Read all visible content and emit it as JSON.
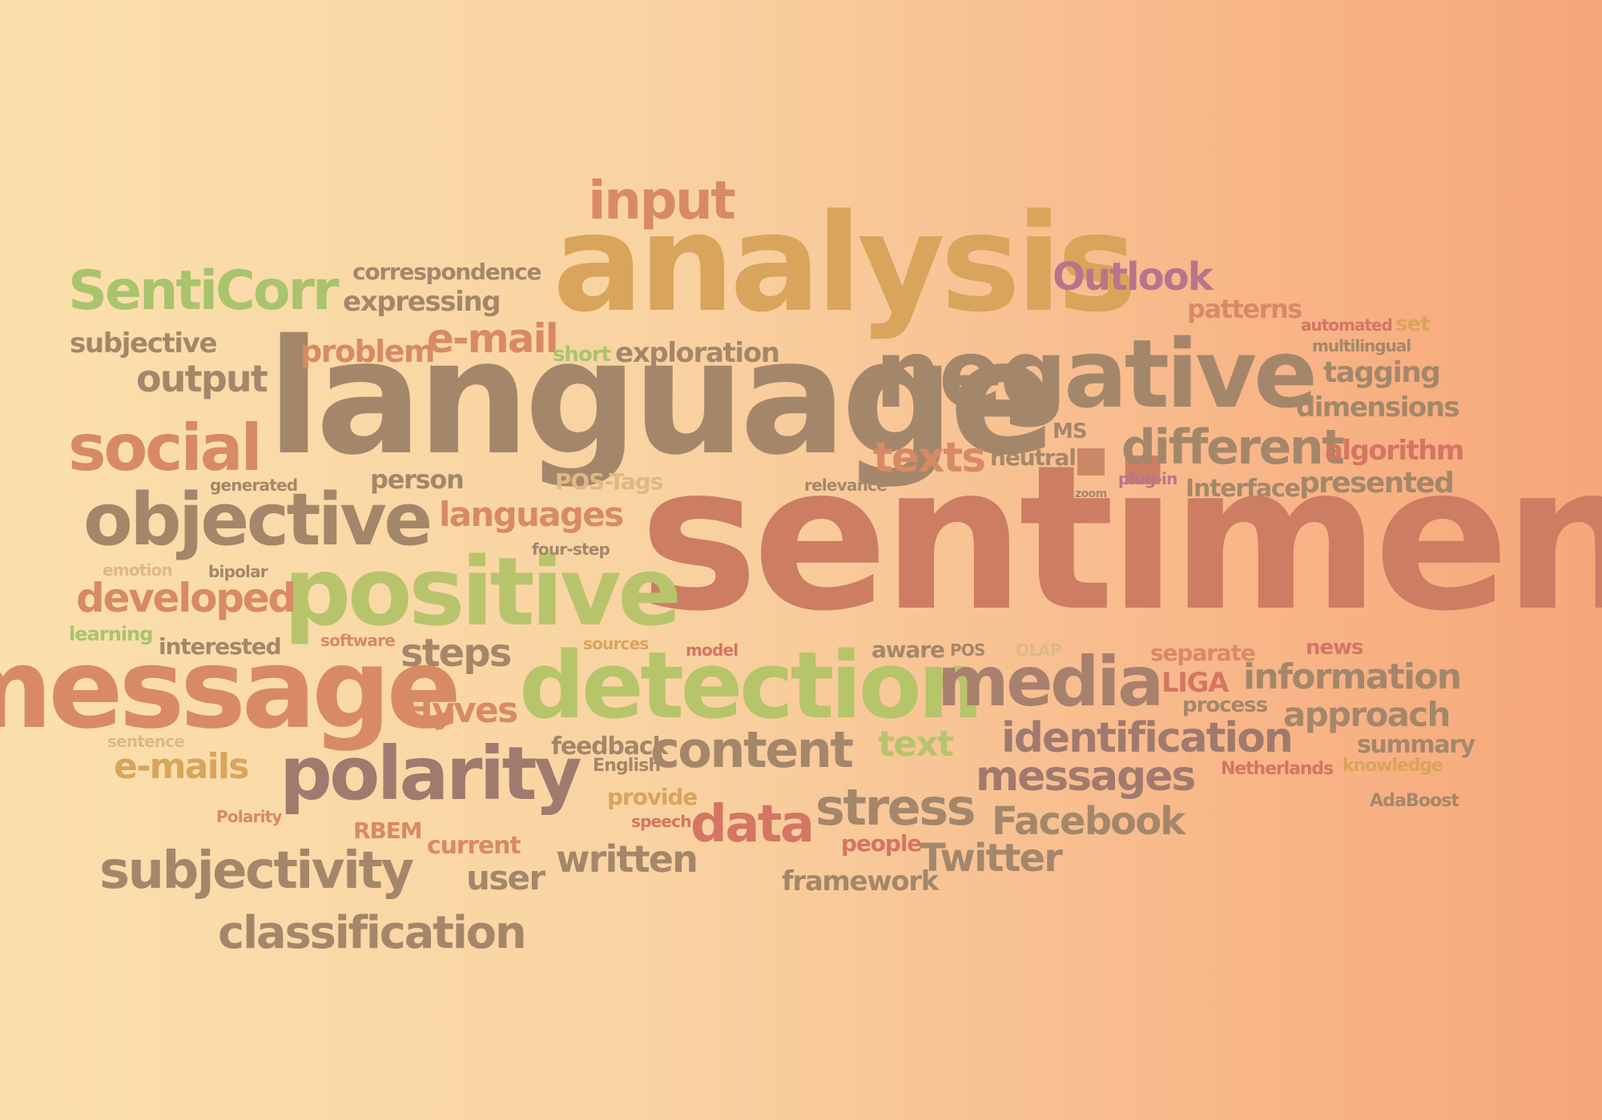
{
  "colors": {
    "orange": "#d88a64",
    "tan": "#d9a45c",
    "red": "#d57563",
    "green": "#a9c46c",
    "brown": "#a4876a",
    "taupe": "#a07a6e",
    "mauve": "#b8758a",
    "dark": "#9e7e6a",
    "olive": "#bfae62"
  },
  "words": {
    "input": "input",
    "analysis": "analysis",
    "outlook": "Outlook",
    "senticorr": "SentiCorr",
    "correspondence": "correspondence",
    "expressing": "expressing",
    "subjective": "subjective",
    "problem": "problem",
    "email": "e-mail",
    "short": "short",
    "exploration": "exploration",
    "negative": "negative",
    "patterns": "patterns",
    "automated": "automated",
    "set": "set",
    "multilingual": "multilingual",
    "tagging": "tagging",
    "dimensions": "dimensions",
    "output": "output",
    "language": "language",
    "social": "social",
    "texts": "texts",
    "neutral": "neutral",
    "ms": "MS",
    "different": "different",
    "algorithm": "algorithm",
    "generated": "generated",
    "person": "person",
    "postags": "POS-Tags",
    "relevance": "relevance",
    "plugin": "plug-in",
    "interface": "Interface",
    "presented": "presented",
    "zoom": "zoom",
    "objective": "objective",
    "languages": "languages",
    "sentiment": "sentiment",
    "emotion": "emotion",
    "bipolar": "bipolar",
    "fourstep": "four-step",
    "developed": "developed",
    "positive": "positive",
    "learning": "learning",
    "interested": "interested",
    "software": "software",
    "steps": "steps",
    "sources": "sources",
    "model": "model",
    "aware": "aware",
    "pos": "POS",
    "olap": "OLAP",
    "separate": "separate",
    "news": "news",
    "message": "message",
    "detection": "detection",
    "media": "media",
    "liga": "LIGA",
    "information": "information",
    "hyves": "Hyves",
    "process": "process",
    "approach": "approach",
    "sentence": "sentence",
    "feedback": "feedback",
    "content": "content",
    "text": "text",
    "identification": "identification",
    "summary": "summary",
    "emails": "e-mails",
    "english": "English",
    "polarity": "polarity",
    "netherlands": "Netherlands",
    "knowledge": "knowledge",
    "messages": "messages",
    "provide": "provide",
    "adaboost": "AdaBoost",
    "polarity_small": "Polarity",
    "speech": "speech",
    "data": "data",
    "stress": "stress",
    "facebook": "Facebook",
    "rbem": "RBEM",
    "current": "current",
    "people": "people",
    "twitter": "Twitter",
    "written": "written",
    "subjectivity": "subjectivity",
    "user": "user",
    "framework": "framework",
    "classification": "classification"
  }
}
